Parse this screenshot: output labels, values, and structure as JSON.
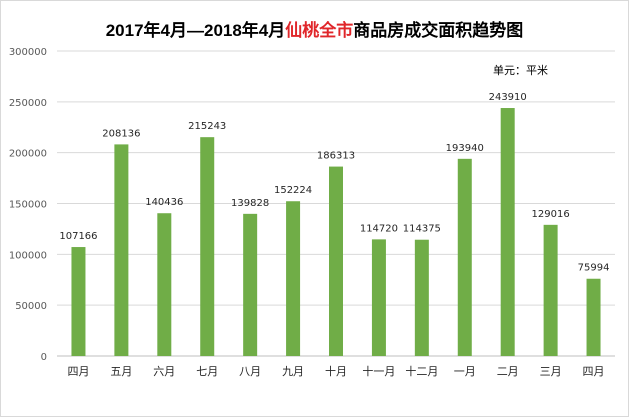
{
  "chart_data": {
    "type": "bar",
    "title": {
      "before": "2017年4月—2018年4月",
      "highlight": "仙桃全市",
      "after": "商品房成交面积趋势图"
    },
    "unit": "单元：平米",
    "categories": [
      "四月",
      "五月",
      "六月",
      "七月",
      "八月",
      "九月",
      "十月",
      "十一月",
      "十二月",
      "一月",
      "二月",
      "三月",
      "四月"
    ],
    "values": [
      107166,
      208136,
      140436,
      215243,
      139828,
      152224,
      186313,
      114720,
      114375,
      193940,
      243910,
      129016,
      75994
    ],
    "ylim": [
      0,
      300000
    ],
    "yticks": [
      0,
      50000,
      100000,
      150000,
      200000,
      250000,
      300000
    ],
    "grid": true,
    "legend": "none",
    "colors": {
      "bar": "#70ad47",
      "grid": "#d9d9d9",
      "highlight": "#e0262a"
    }
  }
}
